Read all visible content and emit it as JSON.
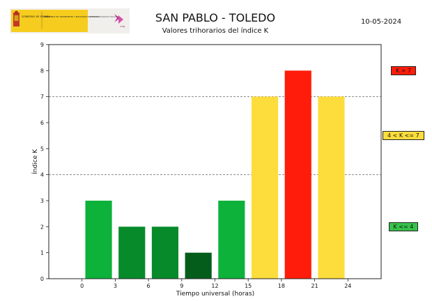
{
  "header": {
    "logo_text_gobierno": "GOBIERNO DE ESPAÑA",
    "logo_text_ministerio": "MINISTERIO DE TRANSPORTES Y MOVILIDAD SOSTENIBLE",
    "logo_text_ign": "INSTITUTO GEOGRÁFICO NACIONAL",
    "logo_text_cnig": "cnig",
    "date": "10-05-2024"
  },
  "chart_data": {
    "type": "bar",
    "title": "SAN PABLO - TOLEDO",
    "subtitle": "Valores trihorarios del índice K",
    "xlabel": "Tiempo universal (horas)",
    "ylabel": "Índice K",
    "xlim": [
      -3,
      27
    ],
    "ylim": [
      0,
      9
    ],
    "x_ticks": [
      0,
      3,
      6,
      9,
      12,
      15,
      18,
      21,
      24
    ],
    "y_ticks": [
      0,
      1,
      2,
      3,
      4,
      5,
      6,
      7,
      8,
      9
    ],
    "bar_start_hours": [
      0,
      3,
      6,
      9,
      12,
      15,
      18,
      21
    ],
    "values": [
      3,
      2,
      2,
      1,
      3,
      7,
      8,
      7
    ],
    "bar_colors": [
      "#0cb23a",
      "#078a2a",
      "#078a2a",
      "#045d1b",
      "#0cb23a",
      "#fddd3c",
      "#ff1c0a",
      "#fddd3c"
    ],
    "threshold_lines": [
      4,
      7
    ],
    "legend": [
      {
        "label": "K > 7",
        "color": "#ff1c0a",
        "level": 8.0
      },
      {
        "label": "4 < K <= 7",
        "color": "#fddd3c",
        "level": 5.5
      },
      {
        "label": "K <= 4",
        "color": "#37c24a",
        "level": 2.0
      }
    ]
  }
}
